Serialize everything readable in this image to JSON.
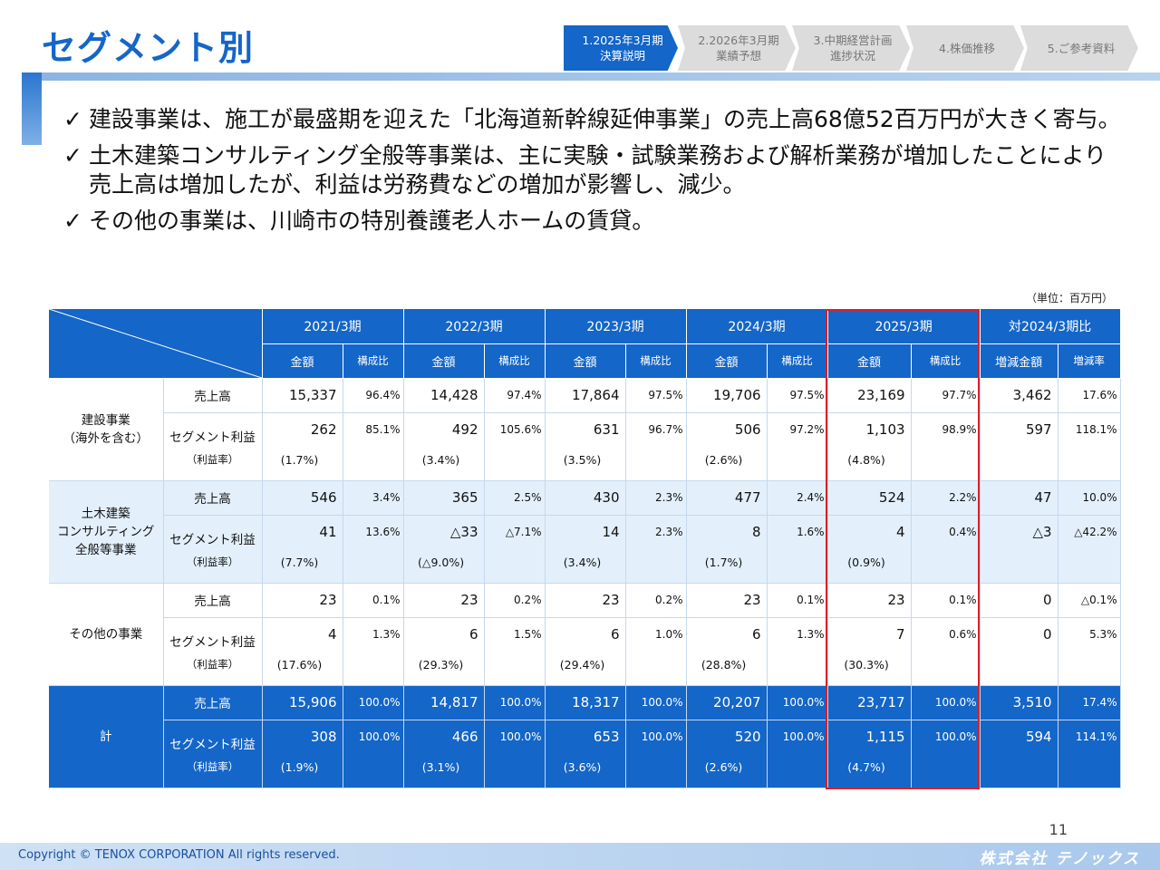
{
  "title": "セグメント別",
  "tabs": [
    {
      "label": "1.2025年3月期\n決算説明",
      "active": true
    },
    {
      "label": "2.2026年3月期\n業績予想",
      "active": false
    },
    {
      "label": "3.中期経営計画\n進捗状況",
      "active": false
    },
    {
      "label": "4.株価推移",
      "active": false
    },
    {
      "label": "5.ご参考資料",
      "active": false
    }
  ],
  "bullets": [
    {
      "check": "✓",
      "text": "建設事業は、施工が最盛期を迎えた「北海道新幹線延伸事業」の売上高68億52百万円が大きく寄与。"
    },
    {
      "check": "✓",
      "text": "土木建築コンサルティング全般等事業は、主に実験・試験業務および解析業務が増加したことにより売上高は増加したが、利益は労務費などの増加が影響し、減少。"
    },
    {
      "check": "✓",
      "text": "その他の事業は、川崎市の特別養護老人ホームの賃貸。"
    }
  ],
  "unit": "（単位：百万円）",
  "table": {
    "years": [
      "2021/3期",
      "2022/3期",
      "2023/3期",
      "2024/3期",
      "2025/3期",
      "対2024/3期比"
    ],
    "sub_amount": "金額",
    "sub_ratio": "構成比",
    "sub_diff": "増減金額",
    "sub_rate": "増減率",
    "item_sales": "売上高",
    "item_profit": "セグメント利益",
    "item_margin": "（利益率）",
    "segments": [
      {
        "name_lines": [
          "建設事業",
          "（海外を含む）"
        ],
        "sales": [
          [
            "15,337",
            "96.4%"
          ],
          [
            "14,428",
            "97.4%"
          ],
          [
            "17,864",
            "97.5%"
          ],
          [
            "19,706",
            "97.5%"
          ],
          [
            "23,169",
            "97.7%"
          ],
          [
            "3,462",
            "17.6%"
          ]
        ],
        "profit": [
          [
            "262",
            "85.1%",
            "(1.7%)"
          ],
          [
            "492",
            "105.6%",
            "(3.4%)"
          ],
          [
            "631",
            "96.7%",
            "(3.5%)"
          ],
          [
            "506",
            "97.2%",
            "(2.6%)"
          ],
          [
            "1,103",
            "98.9%",
            "(4.8%)"
          ],
          [
            "597",
            "118.1%",
            ""
          ]
        ]
      },
      {
        "name_lines": [
          "土木建築",
          "コンサルティング",
          "全般等事業"
        ],
        "sales": [
          [
            "546",
            "3.4%"
          ],
          [
            "365",
            "2.5%"
          ],
          [
            "430",
            "2.3%"
          ],
          [
            "477",
            "2.4%"
          ],
          [
            "524",
            "2.2%"
          ],
          [
            "47",
            "10.0%"
          ]
        ],
        "profit": [
          [
            "41",
            "13.6%",
            "(7.7%)"
          ],
          [
            "△33",
            "△7.1%",
            "(△9.0%)"
          ],
          [
            "14",
            "2.3%",
            "(3.4%)"
          ],
          [
            "8",
            "1.6%",
            "(1.7%)"
          ],
          [
            "4",
            "0.4%",
            "(0.9%)"
          ],
          [
            "△3",
            "△42.2%",
            ""
          ]
        ]
      },
      {
        "name_lines": [
          "その他の事業"
        ],
        "sales": [
          [
            "23",
            "0.1%"
          ],
          [
            "23",
            "0.2%"
          ],
          [
            "23",
            "0.2%"
          ],
          [
            "23",
            "0.1%"
          ],
          [
            "23",
            "0.1%"
          ],
          [
            "0",
            "△0.1%"
          ]
        ],
        "profit": [
          [
            "4",
            "1.3%",
            "(17.6%)"
          ],
          [
            "6",
            "1.5%",
            "(29.3%)"
          ],
          [
            "6",
            "1.0%",
            "(29.4%)"
          ],
          [
            "6",
            "1.3%",
            "(28.8%)"
          ],
          [
            "7",
            "0.6%",
            "(30.3%)"
          ],
          [
            "0",
            "5.3%",
            ""
          ]
        ]
      },
      {
        "name_lines": [
          "計"
        ],
        "sales": [
          [
            "15,906",
            "100.0%"
          ],
          [
            "14,817",
            "100.0%"
          ],
          [
            "18,317",
            "100.0%"
          ],
          [
            "20,207",
            "100.0%"
          ],
          [
            "23,717",
            "100.0%"
          ],
          [
            "3,510",
            "17.4%"
          ]
        ],
        "profit": [
          [
            "308",
            "100.0%",
            "(1.9%)"
          ],
          [
            "466",
            "100.0%",
            "(3.1%)"
          ],
          [
            "653",
            "100.0%",
            "(3.6%)"
          ],
          [
            "520",
            "100.0%",
            "(2.6%)"
          ],
          [
            "1,115",
            "100.0%",
            "(4.7%)"
          ],
          [
            "594",
            "114.1%",
            ""
          ]
        ]
      }
    ]
  },
  "page_number": "11",
  "copyright": "Copyright © TENOX CORPORATION All rights reserved.",
  "logo": "株式会社 テノックス"
}
